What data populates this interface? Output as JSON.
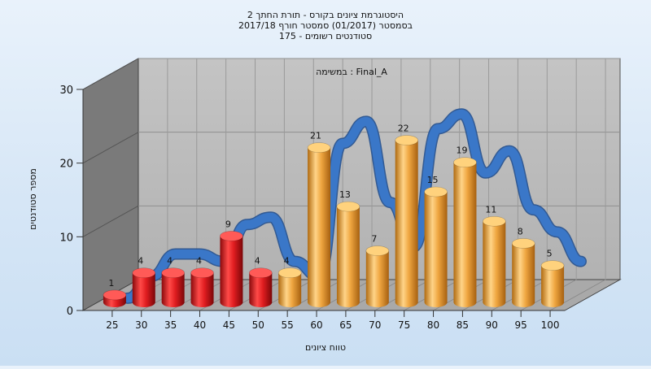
{
  "chart_data": {
    "type": "bar",
    "title_lines": [
      "היסטוגרמת ציונים בקורס - תורת החתך 2",
      "בסמסטר  (01/2017)  סמסטר חורף  2017/18",
      "סטודנטים רשומים - 175"
    ],
    "annotation": "במשימה : Final_A",
    "xlabel": "טווח ציונים",
    "ylabel": "מספר סטודנטים",
    "x_ticks": [
      "25",
      "30",
      "35",
      "40",
      "45",
      "50",
      "55",
      "60",
      "65",
      "70",
      "75",
      "80",
      "85",
      "90",
      "95",
      "100"
    ],
    "y_ticks": [
      "0",
      "10",
      "20",
      "30"
    ],
    "ylim": [
      0,
      30
    ],
    "grid": true,
    "bars": [
      {
        "label": "1",
        "value": 1,
        "color": "red"
      },
      {
        "label": "4",
        "value": 4,
        "color": "red"
      },
      {
        "label": "4",
        "value": 4,
        "color": "red"
      },
      {
        "label": "4",
        "value": 4,
        "color": "red"
      },
      {
        "label": "9",
        "value": 9,
        "color": "red"
      },
      {
        "label": "4",
        "value": 4,
        "color": "red"
      },
      {
        "label": "4",
        "value": 4,
        "color": "orange"
      },
      {
        "label": "21",
        "value": 21,
        "color": "orange"
      },
      {
        "label": "13",
        "value": 13,
        "color": "orange"
      },
      {
        "label": "7",
        "value": 7,
        "color": "orange"
      },
      {
        "label": "22",
        "value": 22,
        "color": "orange"
      },
      {
        "label": "15",
        "value": 15,
        "color": "orange"
      },
      {
        "label": "19",
        "value": 19,
        "color": "orange"
      },
      {
        "label": "11",
        "value": 11,
        "color": "orange"
      },
      {
        "label": "8",
        "value": 8,
        "color": "orange"
      },
      {
        "label": "5",
        "value": 5,
        "color": "orange"
      }
    ],
    "trend_line": [
      1,
      4,
      7,
      7,
      6,
      11,
      12,
      6,
      4,
      22,
      25,
      14,
      8,
      24,
      26,
      18,
      21,
      13,
      10,
      6
    ],
    "colors": {
      "red_bar": "#e8262a",
      "orange_bar": "#f0b04c",
      "trend": "#3a77c8",
      "plot_back": "#bdbdbd",
      "plot_side": "#7a7a7a",
      "plot_floor": "#a9a9a9"
    }
  }
}
